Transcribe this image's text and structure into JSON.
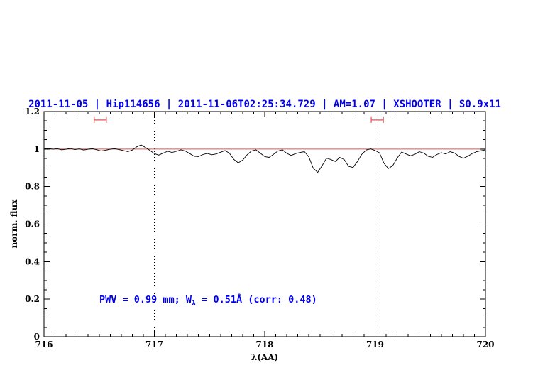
{
  "colors": {
    "blue": "#0000ee",
    "red": "#dd5555",
    "black": "#000000",
    "background": "#ffffff"
  },
  "chart_data": {
    "type": "line",
    "title": "2011-11-05 | Hip114656 | 2011-11-06T02:25:34.729 | AM=1.07 | XSHOOTER | S0.9x11",
    "xlabel": "λ(AA)",
    "ylabel": "norm. flux",
    "xlim": [
      716,
      720
    ],
    "ylim": [
      0,
      1.2
    ],
    "grid": false,
    "legend": "none",
    "x_major_ticks": [
      716,
      717,
      718,
      719,
      720
    ],
    "x_major_labels": [
      "716",
      "717",
      "718",
      "719",
      "720"
    ],
    "x_minor_step": 0.1,
    "y_major_ticks": [
      0,
      0.2,
      0.4,
      0.6,
      0.8,
      1.0,
      1.2
    ],
    "y_major_labels": [
      "0",
      "0.2",
      "0.4",
      "0.6",
      "0.8",
      "1",
      "1.2"
    ],
    "y_minor_step": 0.05,
    "continuum_level": 1.0,
    "dotted_lines_x": [
      717,
      719
    ],
    "markers": [
      {
        "center": 716.51,
        "half_width": 0.055,
        "y": 1.155
      },
      {
        "center": 719.02,
        "half_width": 0.055,
        "y": 1.155
      }
    ],
    "annotation": {
      "prefix": "PWV = 0.99 mm; W",
      "sub": "λ",
      "suffix": " = 0.51Å (corr: 0.48)"
    },
    "x_start": 716.0,
    "x_step": 0.04,
    "flux": [
      1.0,
      1.004,
      0.999,
      1.002,
      0.996,
      0.999,
      1.003,
      0.997,
      1.001,
      0.995,
      0.999,
      1.002,
      0.996,
      0.99,
      0.994,
      0.999,
      1.002,
      0.997,
      0.992,
      0.986,
      0.995,
      1.012,
      1.022,
      1.008,
      0.993,
      0.976,
      0.968,
      0.978,
      0.988,
      0.982,
      0.988,
      0.996,
      0.99,
      0.976,
      0.962,
      0.96,
      0.971,
      0.977,
      0.97,
      0.974,
      0.983,
      0.992,
      0.978,
      0.945,
      0.927,
      0.941,
      0.969,
      0.99,
      0.996,
      0.978,
      0.96,
      0.956,
      0.972,
      0.99,
      0.996,
      0.977,
      0.966,
      0.976,
      0.982,
      0.986,
      0.958,
      0.898,
      0.876,
      0.912,
      0.952,
      0.944,
      0.934,
      0.956,
      0.944,
      0.908,
      0.902,
      0.934,
      0.972,
      0.995,
      1.001,
      0.992,
      0.98,
      0.925,
      0.896,
      0.912,
      0.952,
      0.984,
      0.974,
      0.964,
      0.972,
      0.986,
      0.979,
      0.962,
      0.956,
      0.971,
      0.981,
      0.974,
      0.986,
      0.979,
      0.961,
      0.951,
      0.962,
      0.976,
      0.986,
      0.991,
      0.996
    ]
  }
}
